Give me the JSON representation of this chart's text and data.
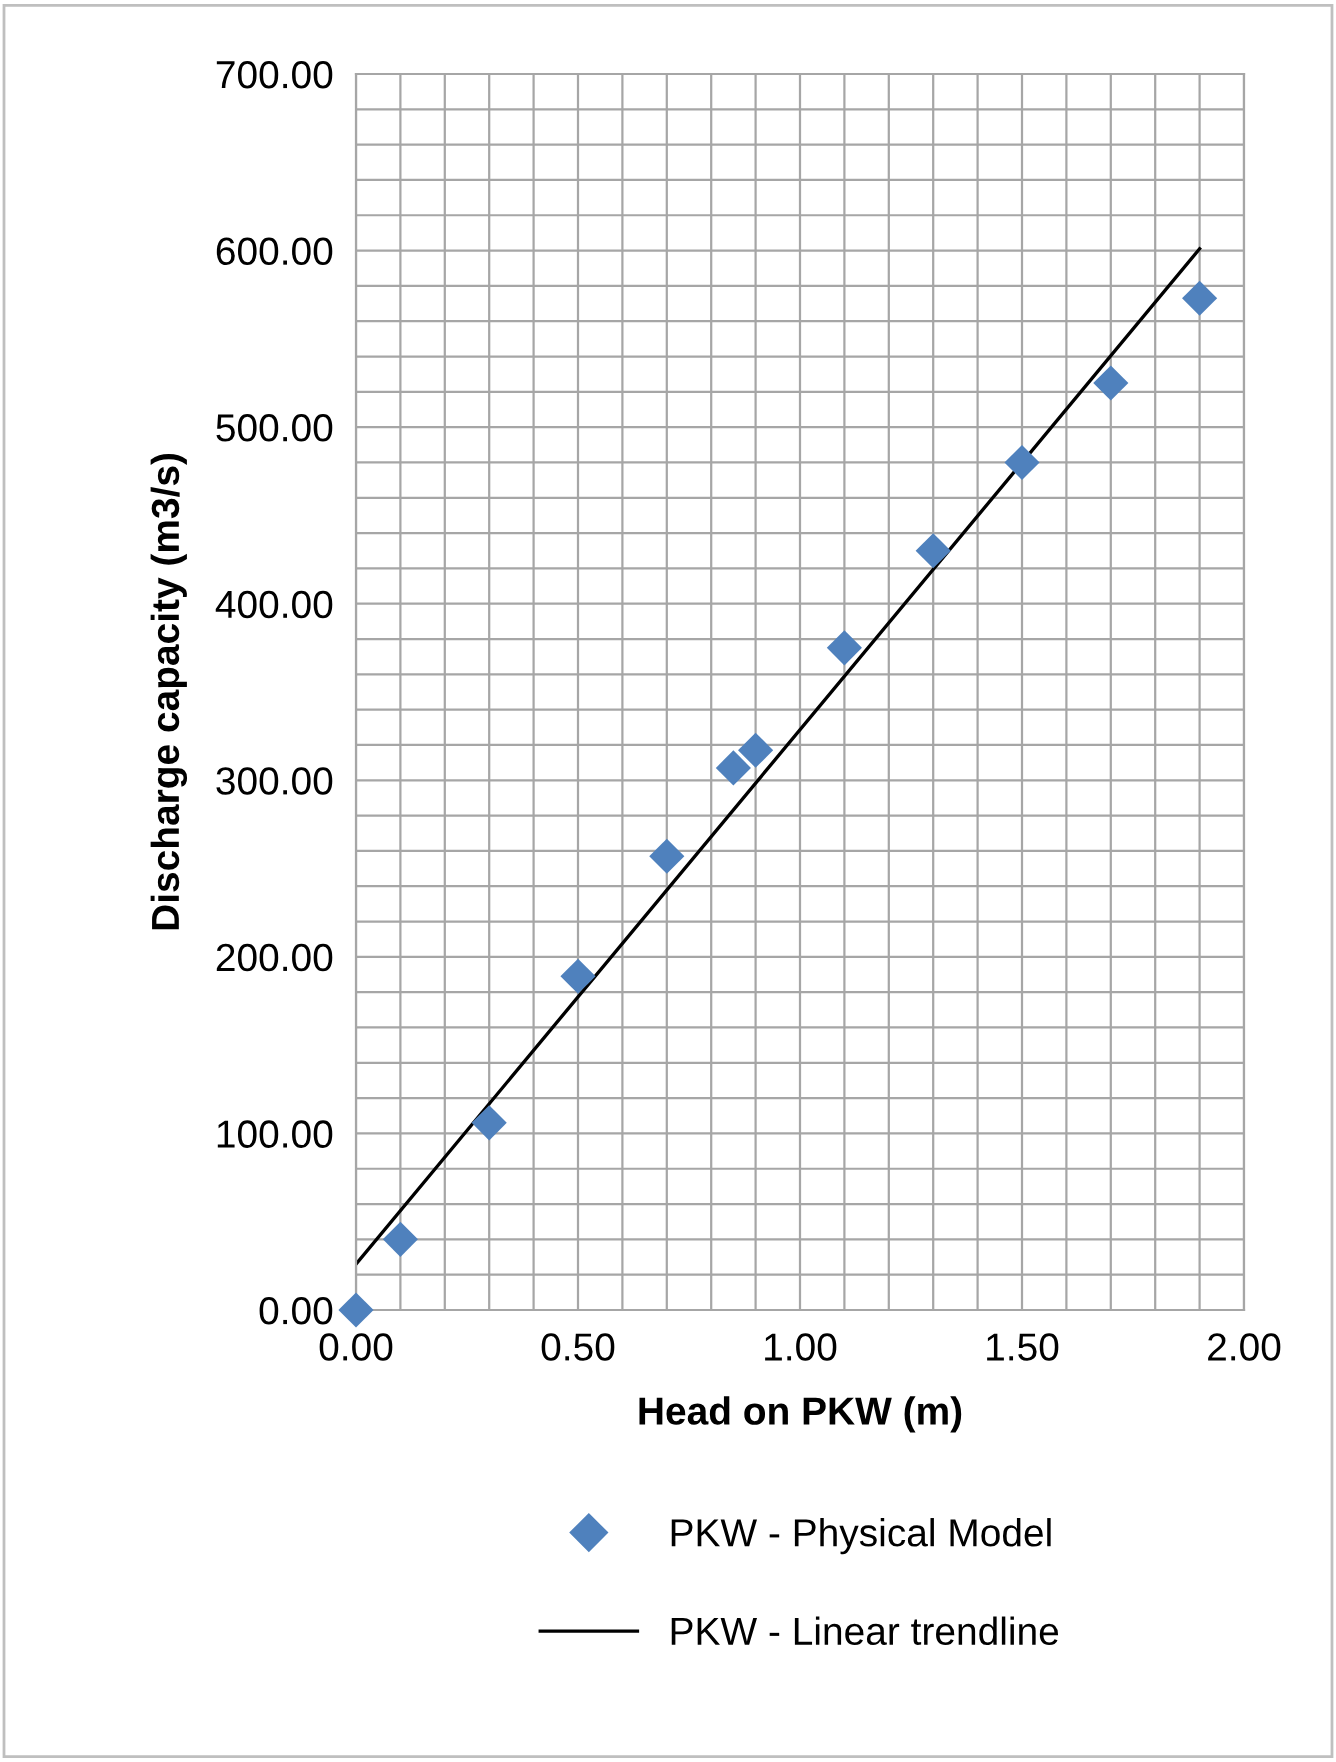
{
  "chart_data": {
    "type": "scatter",
    "xlabel": "Head on PKW (m)",
    "ylabel": "Discharge capacity (m3/s)",
    "series": [
      {
        "name": "PKW - Physical Model",
        "color": "#4f81bd",
        "marker": "diamond",
        "x": [
          0,
          0.1,
          0.3,
          0.5,
          0.7,
          0.85,
          0.9,
          1.1,
          1.3,
          1.5,
          1.7,
          1.9
        ],
        "values": [
          0,
          40,
          106,
          189,
          257,
          307,
          317,
          375,
          430,
          480,
          525,
          573
        ]
      },
      {
        "name": "PKW - Linear trendline",
        "type": "line",
        "color": "#000000",
        "marker": "none",
        "line_style": "solid",
        "x": [
          0,
          1.9
        ],
        "values": [
          26,
          601
        ]
      }
    ],
    "xlim": [
      0,
      2
    ],
    "ylim": [
      0,
      700
    ],
    "xticks": [
      {
        "value": 0,
        "label": "0.00"
      },
      {
        "value": 0.1,
        "label": null
      },
      {
        "value": 0.2,
        "label": null
      },
      {
        "value": 0.3,
        "label": null
      },
      {
        "value": 0.4,
        "label": null
      },
      {
        "value": 0.5,
        "label": "0.50"
      },
      {
        "value": 0.6,
        "label": null
      },
      {
        "value": 0.7,
        "label": null
      },
      {
        "value": 0.8,
        "label": null
      },
      {
        "value": 0.9,
        "label": null
      },
      {
        "value": 1.0,
        "label": "1.00"
      },
      {
        "value": 1.1,
        "label": null
      },
      {
        "value": 1.2,
        "label": null
      },
      {
        "value": 1.3,
        "label": null
      },
      {
        "value": 1.4,
        "label": null
      },
      {
        "value": 1.5,
        "label": "1.50"
      },
      {
        "value": 1.6,
        "label": null
      },
      {
        "value": 1.7,
        "label": null
      },
      {
        "value": 1.8,
        "label": null
      },
      {
        "value": 1.9,
        "label": null
      },
      {
        "value": 2.0,
        "label": "2.00"
      }
    ],
    "yticks": [
      {
        "value": 0,
        "label": "0.00"
      },
      {
        "value": 20,
        "label": null
      },
      {
        "value": 40,
        "label": null
      },
      {
        "value": 60,
        "label": null
      },
      {
        "value": 80,
        "label": null
      },
      {
        "value": 100,
        "label": "100.00"
      },
      {
        "value": 120,
        "label": null
      },
      {
        "value": 140,
        "label": null
      },
      {
        "value": 160,
        "label": null
      },
      {
        "value": 180,
        "label": null
      },
      {
        "value": 200,
        "label": "200.00"
      },
      {
        "value": 220,
        "label": null
      },
      {
        "value": 240,
        "label": null
      },
      {
        "value": 260,
        "label": null
      },
      {
        "value": 280,
        "label": null
      },
      {
        "value": 300,
        "label": "300.00"
      },
      {
        "value": 320,
        "label": null
      },
      {
        "value": 340,
        "label": null
      },
      {
        "value": 360,
        "label": null
      },
      {
        "value": 380,
        "label": null
      },
      {
        "value": 400,
        "label": "400.00"
      },
      {
        "value": 420,
        "label": null
      },
      {
        "value": 440,
        "label": null
      },
      {
        "value": 460,
        "label": null
      },
      {
        "value": 480,
        "label": null
      },
      {
        "value": 500,
        "label": "500.00"
      },
      {
        "value": 520,
        "label": null
      },
      {
        "value": 540,
        "label": null
      },
      {
        "value": 560,
        "label": null
      },
      {
        "value": 580,
        "label": null
      },
      {
        "value": 600,
        "label": "600.00"
      },
      {
        "value": 620,
        "label": null
      },
      {
        "value": 640,
        "label": null
      },
      {
        "value": 660,
        "label": null
      },
      {
        "value": 680,
        "label": null
      },
      {
        "value": 700,
        "label": "700.00"
      }
    ],
    "grid": true,
    "legend": "bottom"
  }
}
